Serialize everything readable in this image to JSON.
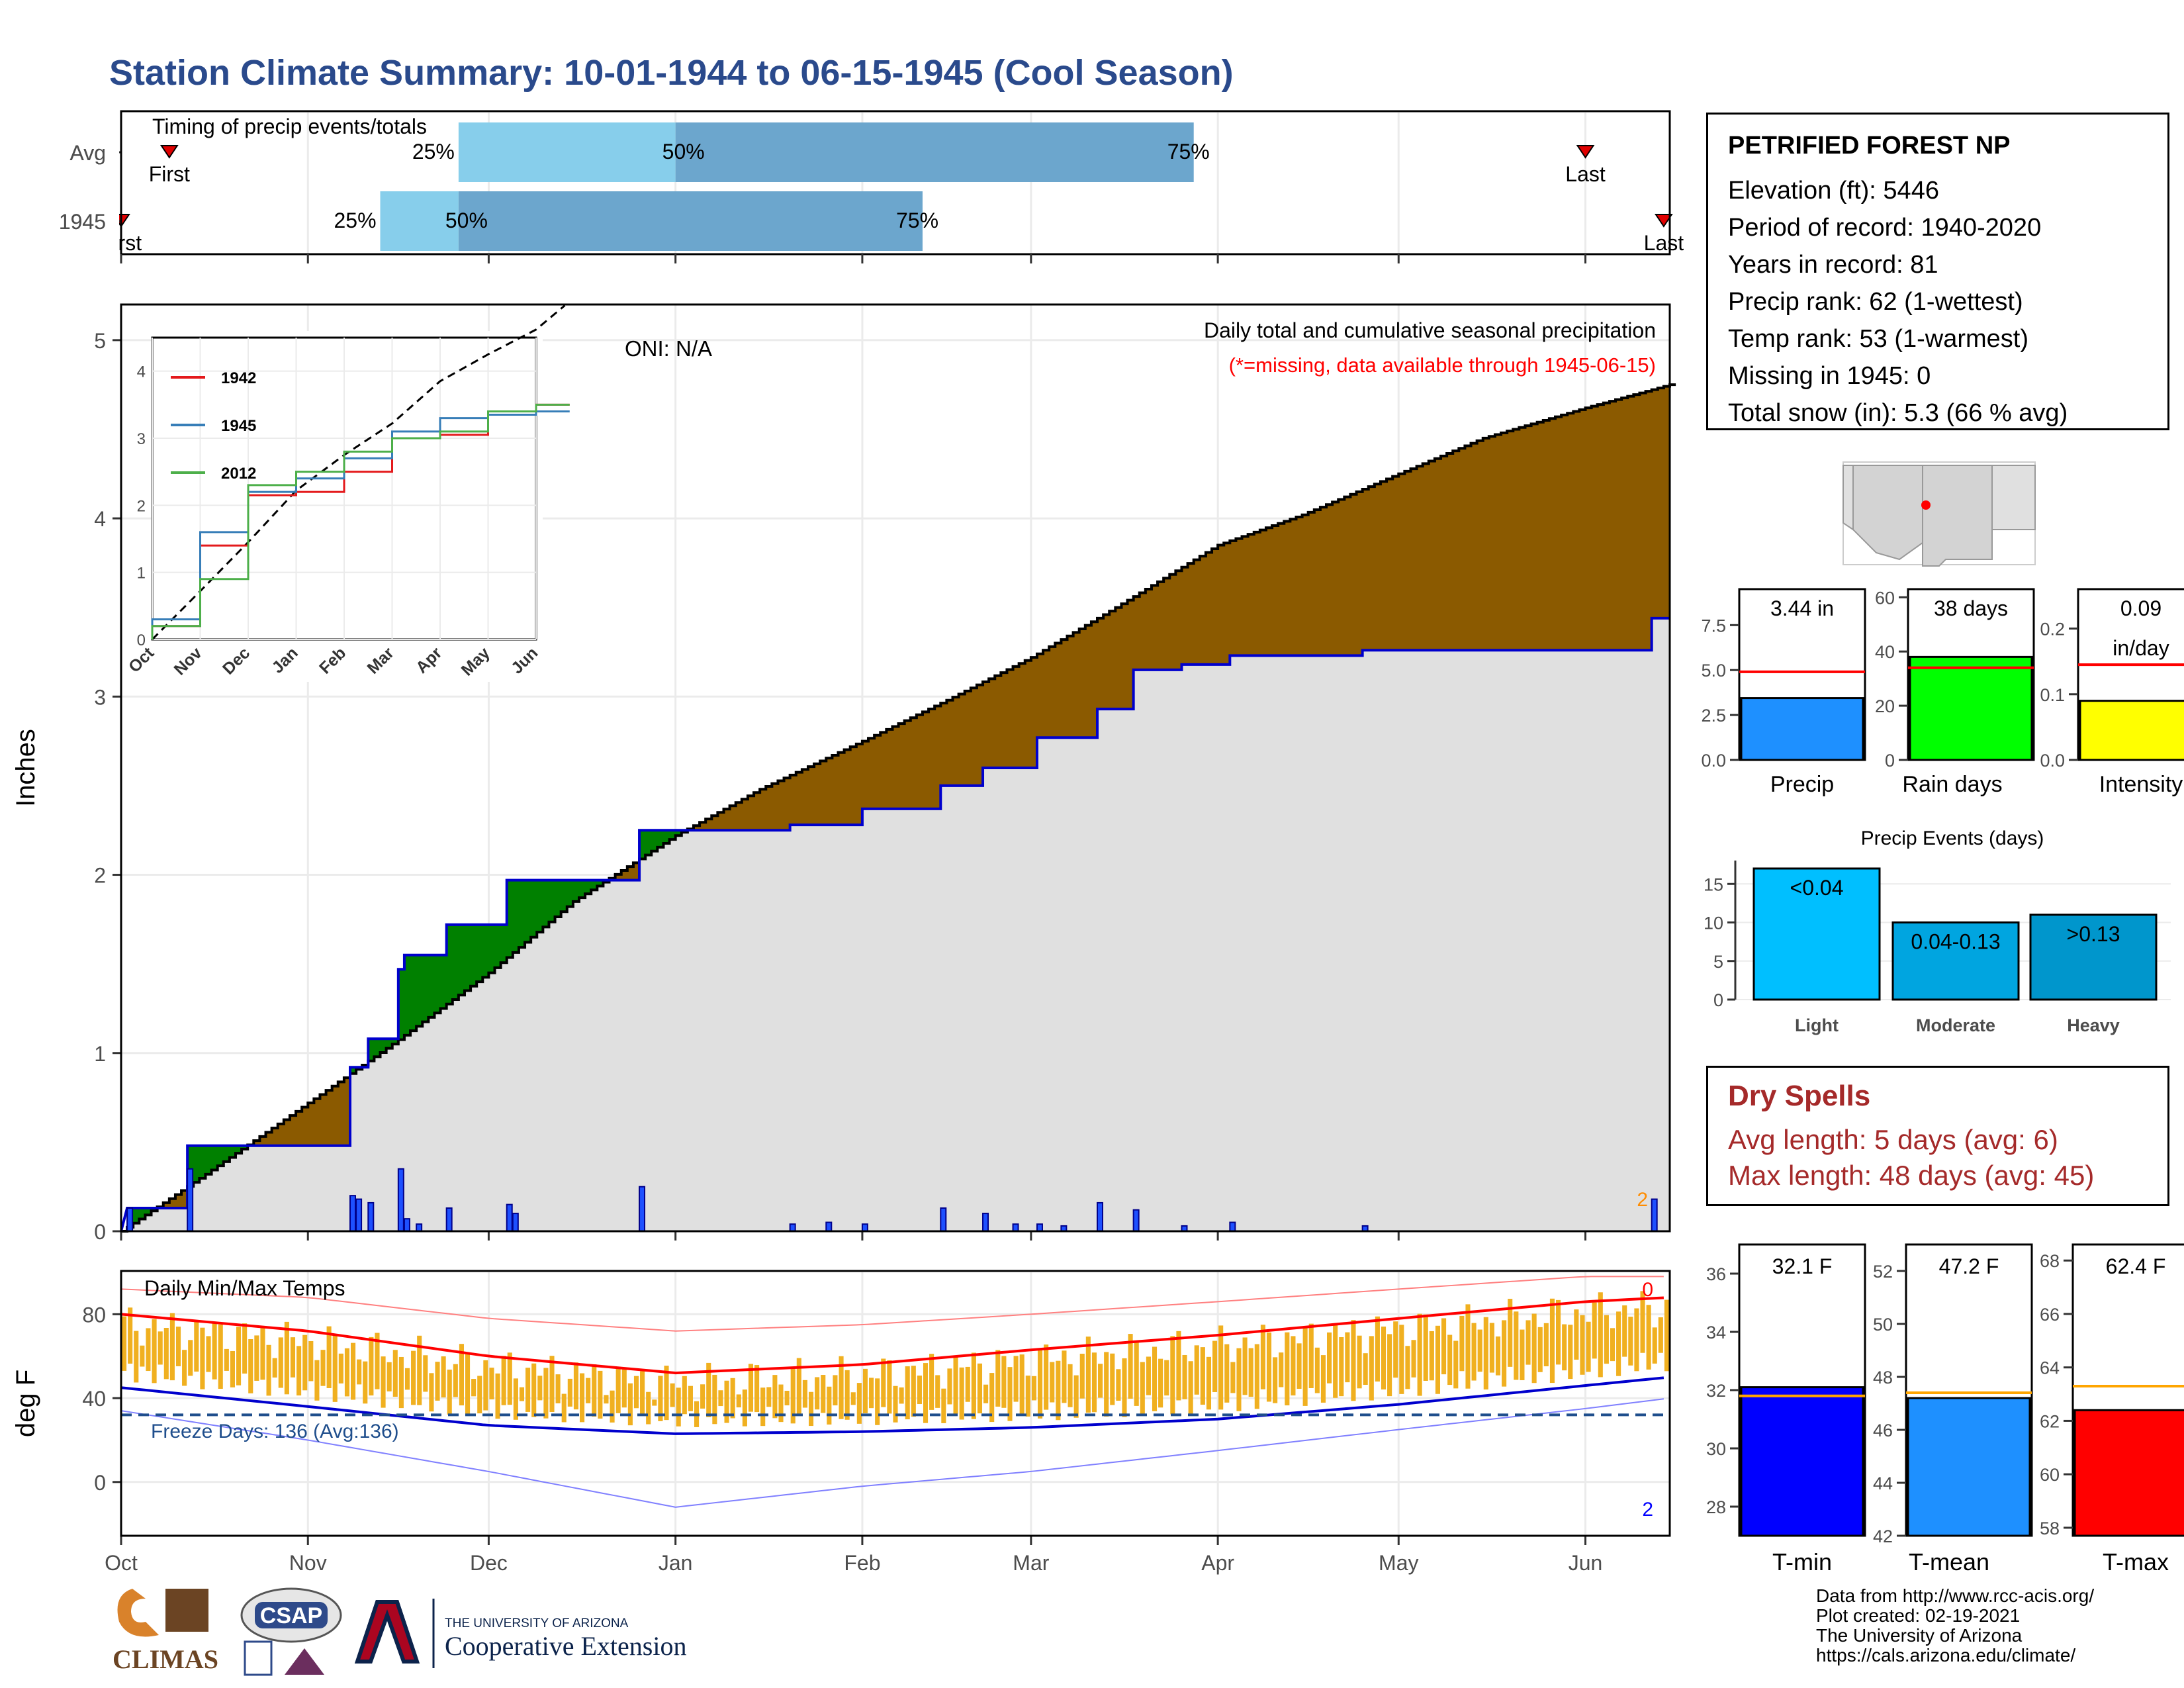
{
  "title": "Station Climate Summary: 10-01-1944 to 06-15-1945 (Cool Season)",
  "timing": {
    "label": "Timing of precip events/totals",
    "rows": [
      {
        "name": "Avg",
        "first": "First",
        "last": "Last",
        "p25": "25%",
        "p50": "50%",
        "p75": "75%"
      },
      {
        "name": "1945",
        "first": "First",
        "last": "Last",
        "p25": "25%",
        "p50": "50%",
        "p75": "75%"
      }
    ]
  },
  "precip_panel": {
    "ylabel": "Inches",
    "oni": "ONI: N/A",
    "note1": "Daily total and cumulative seasonal precipitation",
    "note2": "(*=missing, data available through 1945-06-15)",
    "yticks": [
      "0",
      "1",
      "2",
      "3",
      "4",
      "5"
    ],
    "corner_value": "2"
  },
  "inset": {
    "yticks": [
      "0",
      "1",
      "2",
      "3",
      "4"
    ],
    "xticks": [
      "Oct",
      "Nov",
      "Dec",
      "Jan",
      "Feb",
      "Mar",
      "Apr",
      "May",
      "Jun"
    ],
    "legend": [
      {
        "name": "1942",
        "color": "#e41a1c"
      },
      {
        "name": "1945",
        "color": "#377eb8"
      },
      {
        "name": "2012",
        "color": "#4daf4a"
      }
    ]
  },
  "temp_panel": {
    "ylabel": "deg F",
    "label": "Daily Min/Max Temps",
    "freeze": "Freeze Days: 136 (Avg:136)",
    "yticks": [
      "0",
      "40",
      "80"
    ],
    "corner_top": "0",
    "corner_bottom": "2"
  },
  "months": [
    "Oct",
    "Nov",
    "Dec",
    "Jan",
    "Feb",
    "Mar",
    "Apr",
    "May",
    "Jun"
  ],
  "station": {
    "name": "PETRIFIED FOREST NP",
    "rows": [
      "Elevation (ft): 5446",
      "Period of record: 1940-2020",
      "Years in record: 81",
      "Precip rank: 62 (1-wettest)",
      "Temp rank: 53 (1-warmest)",
      "Missing in 1945: 0",
      "Total snow (in): 5.3 (66 % avg)"
    ]
  },
  "mini_bars": [
    {
      "label": "Precip",
      "value_text": "3.44 in",
      "yticks": [
        "0.0",
        "2.5",
        "5.0",
        "7.5"
      ],
      "color": "#1e90ff"
    },
    {
      "label": "Rain days",
      "value_text": "38 days",
      "yticks": [
        "0",
        "20",
        "40",
        "60"
      ],
      "color": "#00ff00"
    },
    {
      "label": "Intensity",
      "value_text": "0.09",
      "value_text2": "in/day",
      "yticks": [
        "0.0",
        "0.1",
        "0.2"
      ],
      "color": "#ffff00"
    }
  ],
  "events": {
    "title": "Precip Events (days)",
    "yticks": [
      "0",
      "5",
      "10",
      "15"
    ],
    "bars": [
      {
        "cat": "Light",
        "label": "<0.04",
        "color": "#00bfff"
      },
      {
        "cat": "Moderate",
        "label": "0.04-0.13",
        "color": "#00a5e0"
      },
      {
        "cat": "Heavy",
        "label": ">0.13",
        "color": "#0096cc"
      }
    ]
  },
  "dry": {
    "title": "Dry Spells",
    "avg": "Avg length: 5 days (avg: 6)",
    "max": "Max length: 48 days (avg: 45)"
  },
  "temp_bars": [
    {
      "label": "T-min",
      "value_text": "32.1 F",
      "yticks": [
        "28",
        "30",
        "32",
        "34",
        "36"
      ],
      "color": "#0000ff"
    },
    {
      "label": "T-mean",
      "value_text": "47.2 F",
      "yticks": [
        "42",
        "44",
        "46",
        "48",
        "50",
        "52"
      ],
      "color": "#1e90ff"
    },
    {
      "label": "T-max",
      "value_text": "62.4 F",
      "yticks": [
        "58",
        "60",
        "62",
        "64",
        "66",
        "68"
      ],
      "color": "#ff0000"
    }
  ],
  "footer": [
    "Data from http://www.rcc-acis.org/",
    "Plot created: 02-19-2021",
    "The University of Arizona",
    "https://cals.arizona.edu/climate/"
  ],
  "logos": {
    "climas": "CLIMAS",
    "csap": "CSAP",
    "ua_line1": "THE UNIVERSITY OF ARIZONA",
    "ua_line2": "Cooperative Extension"
  },
  "chart_data": [
    {
      "type": "bar",
      "title": "Timing of precip events/totals",
      "categories": [
        "Avg",
        "1945"
      ],
      "series": [
        {
          "name": "25%",
          "values": [
            "1944-11-26",
            "1944-11-13"
          ]
        },
        {
          "name": "50%",
          "values": [
            "1945-01-01",
            "1944-11-26"
          ]
        },
        {
          "name": "75%",
          "values": [
            "1945-03-28",
            "1945-02-11"
          ]
        },
        {
          "name": "First",
          "values": [
            "1944-10-09",
            "1944-10-01"
          ]
        },
        {
          "name": "Last",
          "values": [
            "1945-06-01",
            "1945-06-14"
          ]
        }
      ]
    },
    {
      "type": "area",
      "title": "Daily total and cumulative seasonal precipitation",
      "ylabel": "Inches",
      "ylim": [
        0,
        5.2
      ],
      "avg_cumulative": [
        [
          "1944-10-01",
          0.0
        ],
        [
          "1944-10-15",
          0.32
        ],
        [
          "1944-11-01",
          0.72
        ],
        [
          "1944-11-15",
          1.05
        ],
        [
          "1944-12-01",
          1.45
        ],
        [
          "1944-12-15",
          1.85
        ],
        [
          "1945-01-01",
          2.22
        ],
        [
          "1945-01-15",
          2.48
        ],
        [
          "1945-02-01",
          2.75
        ],
        [
          "1945-02-15",
          2.98
        ],
        [
          "1945-03-01",
          3.22
        ],
        [
          "1945-03-15",
          3.5
        ],
        [
          "1945-04-01",
          3.85
        ],
        [
          "1945-04-15",
          4.02
        ],
        [
          "1945-05-01",
          4.25
        ],
        [
          "1945-05-15",
          4.45
        ],
        [
          "1945-06-01",
          4.62
        ],
        [
          "1945-06-15",
          4.75
        ]
      ],
      "year_cumulative": [
        [
          "1944-10-01",
          0.0
        ],
        [
          "1944-10-02",
          0.13
        ],
        [
          "1944-10-12",
          0.13
        ],
        [
          "1944-10-12",
          0.48
        ],
        [
          "1944-11-01",
          0.48
        ],
        [
          "1944-11-01",
          0.48
        ],
        [
          "1944-11-08",
          0.48
        ],
        [
          "1944-11-08",
          0.92
        ],
        [
          "1944-11-11",
          0.92
        ],
        [
          "1944-11-11",
          1.08
        ],
        [
          "1944-11-16",
          1.08
        ],
        [
          "1944-11-16",
          1.47
        ],
        [
          "1944-11-17",
          1.47
        ],
        [
          "1944-11-17",
          1.55
        ],
        [
          "1944-11-24",
          1.55
        ],
        [
          "1944-11-24",
          1.72
        ],
        [
          "1944-12-04",
          1.72
        ],
        [
          "1944-12-04",
          1.97
        ],
        [
          "1944-12-26",
          1.97
        ],
        [
          "1944-12-26",
          2.25
        ],
        [
          "1945-01-05",
          2.25
        ],
        [
          "1945-01-20",
          2.25
        ],
        [
          "1945-01-20",
          2.28
        ],
        [
          "1945-02-01",
          2.28
        ],
        [
          "1945-02-01",
          2.37
        ],
        [
          "1945-02-14",
          2.37
        ],
        [
          "1945-02-14",
          2.5
        ],
        [
          "1945-02-21",
          2.5
        ],
        [
          "1945-02-21",
          2.6
        ],
        [
          "1945-03-02",
          2.6
        ],
        [
          "1945-03-02",
          2.77
        ],
        [
          "1945-03-12",
          2.77
        ],
        [
          "1945-03-12",
          2.93
        ],
        [
          "1945-03-18",
          2.93
        ],
        [
          "1945-03-18",
          3.15
        ],
        [
          "1945-03-26",
          3.15
        ],
        [
          "1945-03-26",
          3.18
        ],
        [
          "1945-04-03",
          3.18
        ],
        [
          "1945-04-03",
          3.23
        ],
        [
          "1945-04-25",
          3.23
        ],
        [
          "1945-04-25",
          3.26
        ],
        [
          "1945-06-12",
          3.26
        ],
        [
          "1945-06-12",
          3.44
        ],
        [
          "1945-06-15",
          3.44
        ]
      ],
      "daily_bars": [
        [
          "1944-10-02",
          0.13
        ],
        [
          "1944-10-12",
          0.35
        ],
        [
          "1944-11-08",
          0.2
        ],
        [
          "1944-11-09",
          0.18
        ],
        [
          "1944-11-11",
          0.16
        ],
        [
          "1944-11-16",
          0.35
        ],
        [
          "1944-11-17",
          0.07
        ],
        [
          "1944-11-19",
          0.04
        ],
        [
          "1944-11-24",
          0.13
        ],
        [
          "1944-12-04",
          0.15
        ],
        [
          "1944-12-05",
          0.1
        ],
        [
          "1944-12-26",
          0.25
        ],
        [
          "1945-01-20",
          0.04
        ],
        [
          "1945-01-26",
          0.05
        ],
        [
          "1945-02-01",
          0.04
        ],
        [
          "1945-02-14",
          0.13
        ],
        [
          "1945-02-21",
          0.1
        ],
        [
          "1945-02-26",
          0.04
        ],
        [
          "1945-03-02",
          0.04
        ],
        [
          "1945-03-06",
          0.03
        ],
        [
          "1945-03-12",
          0.16
        ],
        [
          "1945-03-18",
          0.12
        ],
        [
          "1945-03-26",
          0.03
        ],
        [
          "1945-04-03",
          0.05
        ],
        [
          "1945-04-25",
          0.03
        ],
        [
          "1945-06-12",
          0.18
        ]
      ]
    },
    {
      "type": "line",
      "title": "",
      "x": [
        "Oct",
        "Nov",
        "Dec",
        "Jan",
        "Feb",
        "Mar",
        "Apr",
        "May",
        "Jun"
      ],
      "ylim": [
        0,
        4.5
      ],
      "series": [
        {
          "name": "1942",
          "values": [
            0.2,
            1.4,
            2.15,
            2.2,
            2.5,
            3.0,
            3.05,
            3.35,
            3.5
          ]
        },
        {
          "name": "1945",
          "values": [
            0.3,
            1.6,
            2.2,
            2.4,
            2.7,
            3.1,
            3.3,
            3.35,
            3.4
          ]
        },
        {
          "name": "2012",
          "values": [
            0.2,
            0.9,
            2.3,
            2.5,
            2.8,
            3.0,
            3.1,
            3.4,
            3.5
          ]
        }
      ]
    },
    {
      "type": "line",
      "title": "Daily Min/Max Temps",
      "ylabel": "deg F",
      "ylim": [
        -25,
        100
      ],
      "x": [
        "1944-10-01",
        "1944-11-01",
        "1944-12-01",
        "1945-01-01",
        "1945-02-01",
        "1945-03-01",
        "1945-04-01",
        "1945-05-01",
        "1945-06-01",
        "1945-06-15"
      ],
      "series": [
        {
          "values": [
            80,
            72,
            60,
            52,
            56,
            63,
            70,
            78,
            86,
            88
          ]
        },
        {
          "values": [
            45,
            36,
            27,
            23,
            24,
            26,
            30,
            37,
            46,
            50
          ]
        },
        {
          "values": [
            92,
            88,
            78,
            72,
            75,
            80,
            86,
            92,
            98,
            98
          ]
        },
        {
          "values": [
            34,
            20,
            5,
            -12,
            -2,
            5,
            15,
            25,
            35,
            40
          ]
        }
      ],
      "freeze_line": 32
    },
    {
      "type": "bar",
      "categories": [
        "Precip"
      ],
      "values": [
        3.44
      ],
      "avg": 4.9,
      "ylim": [
        0,
        9.5
      ]
    },
    {
      "type": "bar",
      "categories": [
        "Rain days"
      ],
      "values": [
        38
      ],
      "avg": 34,
      "ylim": [
        0,
        63
      ]
    },
    {
      "type": "bar",
      "categories": [
        "Intensity"
      ],
      "values": [
        0.09
      ],
      "avg": 0.145,
      "ylim": [
        0,
        0.26
      ]
    },
    {
      "type": "bar",
      "title": "Precip Events (days)",
      "categories": [
        "Light",
        "Moderate",
        "Heavy"
      ],
      "values": [
        17,
        10,
        11
      ],
      "ylim": [
        0,
        17
      ]
    },
    {
      "type": "bar",
      "categories": [
        "T-min"
      ],
      "values": [
        32.1
      ],
      "avg": 31.8,
      "ylim": [
        27,
        37
      ]
    },
    {
      "type": "bar",
      "categories": [
        "T-mean"
      ],
      "values": [
        47.2
      ],
      "avg": 47.4,
      "ylim": [
        42,
        53
      ]
    },
    {
      "type": "bar",
      "categories": [
        "T-max"
      ],
      "values": [
        62.4
      ],
      "avg": 63.3,
      "ylim": [
        57.7,
        68.6
      ]
    }
  ]
}
